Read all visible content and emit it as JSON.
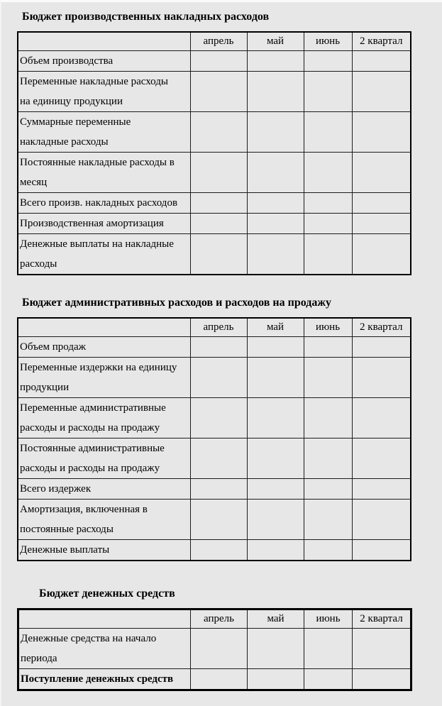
{
  "page": {
    "background_color": "#e7e7e7",
    "border_color": "#000000",
    "text_color": "#000000"
  },
  "tables": [
    {
      "title": "Бюджет производственных накладных расходов",
      "columns": [
        "апрель",
        "май",
        "июнь",
        "2 квартал"
      ],
      "rows": [
        {
          "lines": [
            "Объем производства"
          ],
          "bold": false,
          "values": [
            "",
            "",
            "",
            ""
          ]
        },
        {
          "lines": [
            "Переменные накладные расходы",
            "на единицу продукции"
          ],
          "bold": false,
          "values": [
            "",
            "",
            "",
            ""
          ]
        },
        {
          "lines": [
            "Суммарные переменные",
            "накладные расходы"
          ],
          "bold": false,
          "values": [
            "",
            "",
            "",
            ""
          ]
        },
        {
          "lines": [
            "Постоянные накладные расходы в",
            "месяц"
          ],
          "bold": false,
          "values": [
            "",
            "",
            "",
            ""
          ]
        },
        {
          "lines": [
            "Всего произв. накладных расходов"
          ],
          "bold": false,
          "values": [
            "",
            "",
            "",
            ""
          ]
        },
        {
          "lines": [
            "Производственная амортизация"
          ],
          "bold": false,
          "values": [
            "",
            "",
            "",
            ""
          ]
        },
        {
          "lines": [
            "Денежные выплаты на накладные",
            "расходы"
          ],
          "bold": false,
          "values": [
            "",
            "",
            "",
            ""
          ]
        }
      ]
    },
    {
      "title": "Бюджет административных расходов и расходов на продажу",
      "columns": [
        "апрель",
        "май",
        "июнь",
        "2 квартал"
      ],
      "rows": [
        {
          "lines": [
            "Объем продаж"
          ],
          "bold": false,
          "values": [
            "",
            "",
            "",
            ""
          ]
        },
        {
          "lines": [
            "Переменные  издержки на единицу",
            "продукции"
          ],
          "bold": false,
          "values": [
            "",
            "",
            "",
            ""
          ]
        },
        {
          "lines": [
            "Переменные административные",
            "расходы и расходы на продажу"
          ],
          "bold": false,
          "values": [
            "",
            "",
            "",
            ""
          ]
        },
        {
          "lines": [
            "Постоянные административные",
            "расходы и расходы на продажу"
          ],
          "bold": false,
          "values": [
            "",
            "",
            "",
            ""
          ]
        },
        {
          "lines": [
            "Всего издержек"
          ],
          "bold": false,
          "values": [
            "",
            "",
            "",
            ""
          ]
        },
        {
          "lines": [
            "Амортизация, включенная в",
            "постоянные расходы"
          ],
          "bold": false,
          "values": [
            "",
            "",
            "",
            ""
          ]
        },
        {
          "lines": [
            "Денежные выплаты"
          ],
          "bold": false,
          "values": [
            "",
            "",
            "",
            ""
          ]
        }
      ]
    },
    {
      "title": "Бюджет денежных средств",
      "columns": [
        "апрель",
        "май",
        "июнь",
        "2 квартал"
      ],
      "rows": [
        {
          "lines": [
            "Денежные средства на начало",
            "периода"
          ],
          "bold": false,
          "values": [
            "",
            "",
            "",
            ""
          ]
        },
        {
          "lines": [
            "Поступление денежных средств"
          ],
          "bold": true,
          "values": [
            "",
            "",
            "",
            ""
          ]
        }
      ]
    }
  ]
}
